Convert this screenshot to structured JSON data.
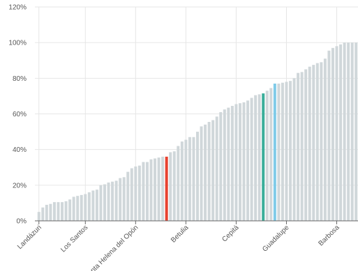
{
  "chart_data": {
    "type": "bar",
    "ylim": [
      0,
      120
    ],
    "y_ticks": [
      0,
      20,
      40,
      60,
      80,
      100,
      120
    ],
    "y_tick_labels": [
      "0%",
      "20%",
      "40%",
      "60%",
      "80%",
      "100%",
      "120%"
    ],
    "x_tick_labels": [
      "Landázuri",
      "Los Santos",
      "Santa Helena del Opón",
      "Betulia",
      "Cepitá",
      "Guadalupe",
      "Barbosa"
    ],
    "x_tick_indices": [
      0,
      12,
      25,
      38,
      51,
      64,
      77
    ],
    "grid": true,
    "legend": "none",
    "base_color": "#d0d7da",
    "highlights": [
      {
        "index": 33,
        "color": "#e8412f"
      },
      {
        "index": 58,
        "color": "#3aae9a"
      },
      {
        "index": 61,
        "color": "#7fcbe8"
      }
    ],
    "values": [
      5,
      7.5,
      9,
      9.5,
      10.5,
      10.5,
      10.5,
      11,
      12,
      13.5,
      14,
      14.5,
      15,
      16,
      17,
      17.5,
      20,
      20.5,
      21.5,
      22,
      22.5,
      24,
      24.5,
      27.5,
      29.5,
      30.5,
      31,
      33,
      33,
      34.5,
      35,
      35.5,
      36,
      36,
      38.5,
      39,
      42,
      44.5,
      45.5,
      47,
      47,
      50,
      53,
      54,
      55.5,
      56.5,
      58.5,
      61,
      62.5,
      63.5,
      64.5,
      65.5,
      66,
      66.5,
      67.5,
      69,
      70.5,
      71,
      71.5,
      73,
      74.5,
      77,
      77,
      77.5,
      78,
      78.5,
      80,
      83,
      83.5,
      85,
      86.5,
      87.5,
      88.5,
      89,
      91,
      95.5,
      97,
      98,
      99,
      100,
      100,
      100,
      100
    ]
  }
}
